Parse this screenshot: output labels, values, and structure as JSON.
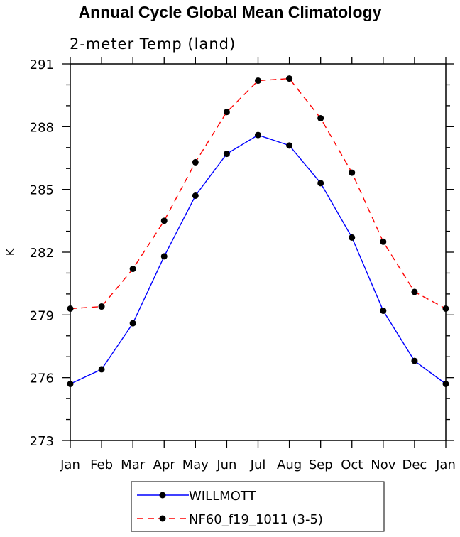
{
  "chart_data": {
    "type": "line",
    "title": "Annual Cycle Global Mean Climatology",
    "subtitle": "2-meter Temp (land)",
    "xlabel": "",
    "ylabel": "K",
    "categories": [
      "Jan",
      "Feb",
      "Mar",
      "Apr",
      "May",
      "Jun",
      "Jul",
      "Aug",
      "Sep",
      "Oct",
      "Nov",
      "Dec",
      "Jan"
    ],
    "ylim": [
      273,
      291
    ],
    "yticks": [
      "273",
      "276",
      "279",
      "282",
      "285",
      "288",
      "291"
    ],
    "series": [
      {
        "name": "WILLMOTT",
        "color": "#0000ff",
        "style": "solid",
        "values": [
          275.7,
          276.4,
          278.6,
          281.8,
          284.7,
          286.7,
          287.6,
          287.1,
          285.3,
          282.7,
          279.2,
          276.8,
          275.7
        ]
      },
      {
        "name": "NF60_f19_1011 (3-5)",
        "color": "#ff0000",
        "style": "dashed",
        "values": [
          279.3,
          279.4,
          281.2,
          283.5,
          286.3,
          288.7,
          290.2,
          290.3,
          288.4,
          285.8,
          282.5,
          280.1,
          279.3
        ]
      }
    ],
    "legend_position": "bottom-center"
  }
}
